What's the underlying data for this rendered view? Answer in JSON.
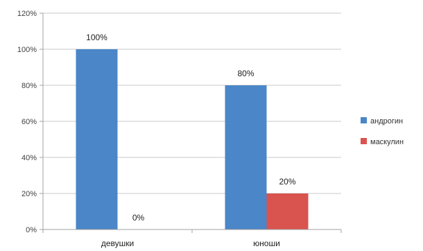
{
  "chart_data": {
    "type": "bar",
    "categories": [
      "девушки",
      "юноши"
    ],
    "series": [
      {
        "name": "андрогин",
        "values": [
          100,
          80
        ],
        "color": "#4a86c8"
      },
      {
        "name": "маскулин",
        "values": [
          0,
          20
        ],
        "color": "#d9534f"
      }
    ],
    "data_labels": [
      [
        "100%",
        "80%"
      ],
      [
        "0%",
        "20%"
      ]
    ],
    "y_ticks": [
      {
        "value": 0,
        "label": "0%"
      },
      {
        "value": 20,
        "label": "20%"
      },
      {
        "value": 40,
        "label": "40%"
      },
      {
        "value": 60,
        "label": "60%"
      },
      {
        "value": 80,
        "label": "80%"
      },
      {
        "value": 100,
        "label": "100%"
      },
      {
        "value": 120,
        "label": "120%"
      }
    ],
    "ylim": [
      0,
      120
    ],
    "grid": true,
    "legend_position": "right",
    "title": "",
    "xlabel": "",
    "ylabel": ""
  }
}
